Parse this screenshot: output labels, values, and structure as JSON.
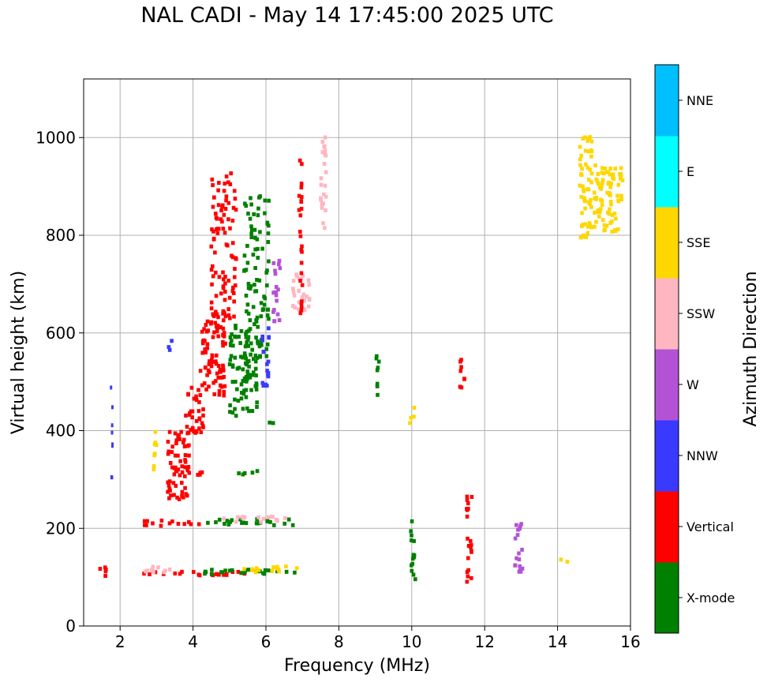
{
  "chart_data": {
    "type": "scatter",
    "title": "NAL CADI - May 14 17:45:00 2025 UTC",
    "xlabel": "Frequency (MHz)",
    "ylabel": "Virtual height (km)",
    "xlim": [
      1.0,
      16.0
    ],
    "ylim": [
      0,
      1120
    ],
    "xticks": [
      2,
      4,
      6,
      8,
      10,
      12,
      14,
      16
    ],
    "yticks": [
      0,
      200,
      400,
      600,
      800,
      1000
    ],
    "grid": true,
    "colorbar": {
      "label": "Azimuth Direction",
      "categories": [
        {
          "name": "X-mode",
          "color": "#008000"
        },
        {
          "name": "Vertical",
          "color": "#ff0000"
        },
        {
          "name": "NNW",
          "color": "#3a3aff"
        },
        {
          "name": "W",
          "color": "#b452d6"
        },
        {
          "name": "SSW",
          "color": "#ffb6c1"
        },
        {
          "name": "SSE",
          "color": "#ffd700"
        },
        {
          "name": "E",
          "color": "#00ffff"
        },
        {
          "name": "NNE",
          "color": "#00bfff"
        }
      ]
    },
    "echoes": [
      {
        "category": "Vertical",
        "f0": 1.4,
        "f1": 1.7,
        "h0": 95,
        "h1": 120
      },
      {
        "category": "Vertical",
        "f0": 2.3,
        "f1": 5.5,
        "h0": 103,
        "h1": 112
      },
      {
        "category": "SSW",
        "f0": 2.4,
        "f1": 3.6,
        "h0": 110,
        "h1": 122
      },
      {
        "category": "X-mode",
        "f0": 4.3,
        "f1": 6.8,
        "h0": 103,
        "h1": 116
      },
      {
        "category": "SSE",
        "f0": 5.2,
        "f1": 6.9,
        "h0": 110,
        "h1": 122
      },
      {
        "category": "Vertical",
        "f0": 2.5,
        "f1": 4.3,
        "h0": 205,
        "h1": 216
      },
      {
        "category": "X-mode",
        "f0": 4.3,
        "f1": 6.8,
        "h0": 206,
        "h1": 219
      },
      {
        "category": "SSW",
        "f0": 4.8,
        "f1": 6.7,
        "h0": 212,
        "h1": 224
      },
      {
        "category": "Vertical",
        "f0": 3.5,
        "f1": 4.4,
        "h0": 308,
        "h1": 316
      },
      {
        "category": "X-mode",
        "f0": 5.2,
        "f1": 6.1,
        "h0": 310,
        "h1": 318
      },
      {
        "category": "X-mode",
        "f0": 6.0,
        "f1": 6.4,
        "h0": 411,
        "h1": 418
      },
      {
        "category": "NNW",
        "f0": 1.75,
        "f1": 1.8,
        "h0": 280,
        "h1": 490
      },
      {
        "category": "SSE",
        "f0": 2.9,
        "f1": 3.0,
        "h0": 300,
        "h1": 405
      },
      {
        "category": "NNW",
        "f0": 3.33,
        "f1": 3.43,
        "h0": 565,
        "h1": 603
      },
      {
        "category": "Vertical",
        "f0": 3.3,
        "f1": 3.9,
        "h0": 255,
        "h1": 400
      },
      {
        "category": "Vertical",
        "f0": 3.8,
        "f1": 4.3,
        "h0": 395,
        "h1": 490
      },
      {
        "category": "Vertical",
        "f0": 4.2,
        "f1": 4.9,
        "h0": 470,
        "h1": 640
      },
      {
        "category": "Vertical",
        "f0": 4.5,
        "f1": 5.2,
        "h0": 630,
        "h1": 940
      },
      {
        "category": "X-mode",
        "f0": 5.0,
        "f1": 5.8,
        "h0": 430,
        "h1": 620
      },
      {
        "category": "X-mode",
        "f0": 5.4,
        "f1": 6.1,
        "h0": 550,
        "h1": 890
      },
      {
        "category": "NNW",
        "f0": 5.9,
        "f1": 6.1,
        "h0": 490,
        "h1": 620
      },
      {
        "category": "W",
        "f0": 6.2,
        "f1": 6.4,
        "h0": 620,
        "h1": 750
      },
      {
        "category": "SSW",
        "f0": 6.7,
        "f1": 7.2,
        "h0": 640,
        "h1": 720
      },
      {
        "category": "Vertical",
        "f0": 6.9,
        "f1": 7.0,
        "h0": 640,
        "h1": 985
      },
      {
        "category": "SSW",
        "f0": 7.5,
        "f1": 7.65,
        "h0": 810,
        "h1": 1020
      },
      {
        "category": "X-mode",
        "f0": 9.0,
        "f1": 9.1,
        "h0": 440,
        "h1": 565
      },
      {
        "category": "SSE",
        "f0": 9.95,
        "f1": 10.1,
        "h0": 415,
        "h1": 455
      },
      {
        "category": "X-mode",
        "f0": 9.95,
        "f1": 10.1,
        "h0": 95,
        "h1": 225
      },
      {
        "category": "Vertical",
        "f0": 11.3,
        "f1": 11.45,
        "h0": 480,
        "h1": 555
      },
      {
        "category": "Vertical",
        "f0": 11.5,
        "f1": 11.65,
        "h0": 90,
        "h1": 290
      },
      {
        "category": "W",
        "f0": 12.8,
        "f1": 13.05,
        "h0": 110,
        "h1": 210
      },
      {
        "category": "SSE",
        "f0": 14.05,
        "f1": 14.3,
        "h0": 128,
        "h1": 136
      },
      {
        "category": "SSE",
        "f0": 14.6,
        "f1": 14.95,
        "h0": 795,
        "h1": 1008
      },
      {
        "category": "SSE",
        "f0": 15.0,
        "f1": 15.8,
        "h0": 805,
        "h1": 945
      }
    ]
  }
}
